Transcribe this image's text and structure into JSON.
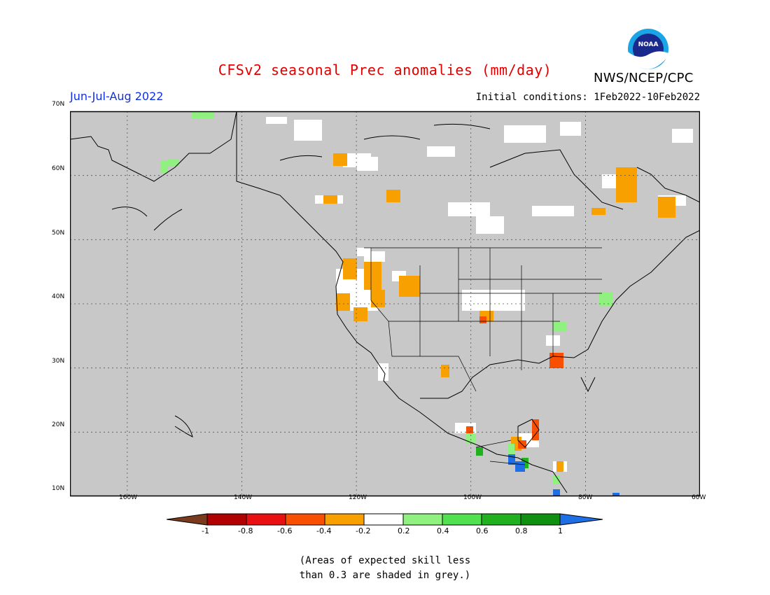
{
  "header": {
    "title": "CFSv2 seasonal Prec anomalies (mm/day)",
    "organization": "NWS/NCEP/CPC",
    "season": "Jun-Jul-Aug 2022",
    "initial_conditions": "Initial conditions: 1Feb2022-10Feb2022",
    "logo_text": "NOAA"
  },
  "map": {
    "projection": "lat-lon",
    "lon_range": [
      -170,
      -60
    ],
    "lat_range": [
      10,
      70
    ],
    "background_color": "#c8c8c8",
    "gridlines": "dotted",
    "lat_labels": [
      "70N",
      "60N",
      "50N",
      "40N",
      "30N",
      "20N",
      "10N"
    ],
    "lon_labels": [
      "160W",
      "140W",
      "120W",
      "100W",
      "80W",
      "60W"
    ]
  },
  "colorbar": {
    "labels": [
      "-1",
      "-0.8",
      "-0.6",
      "-0.4",
      "-0.2",
      "0.2",
      "0.4",
      "0.6",
      "0.8",
      "1"
    ],
    "colors": [
      "#7a3a1e",
      "#b00000",
      "#e81010",
      "#f85000",
      "#f8a000",
      "#ffffff",
      "#90f080",
      "#50e050",
      "#20b020",
      "#109010",
      "#1e6ee6"
    ]
  },
  "footnote": {
    "line1": "(Areas of expected skill less",
    "line2": "than 0.3 are shaded in grey.)"
  }
}
